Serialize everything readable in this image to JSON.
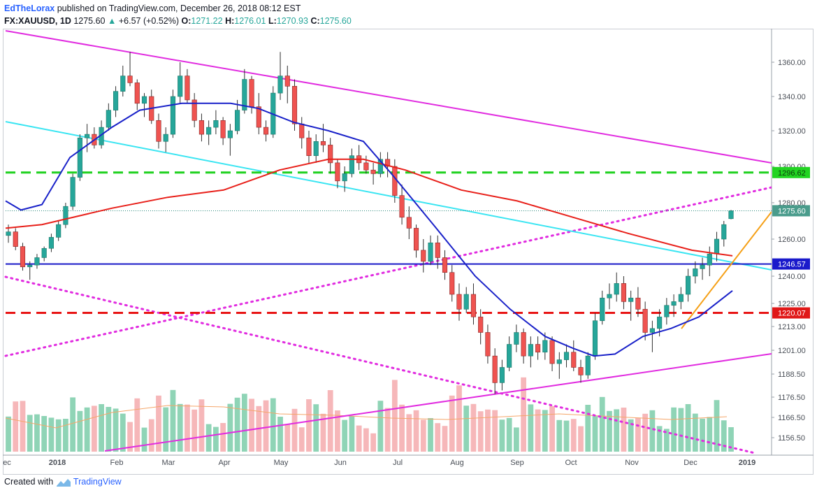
{
  "header": {
    "author": "EdTheLorax",
    "published": "published on TradingView.com, December 26, 2018 08:12 EST",
    "symbol": "FX:XAUUSD, 1D",
    "last": "1275.60",
    "change": "+6.57 (+0.52%)",
    "o_label": "O:",
    "o_value": "1271.22",
    "h_label": "H:",
    "h_value": "1276.01",
    "l_label": "L:",
    "l_value": "1270.93",
    "c_label": "C:",
    "c_value": "1275.60"
  },
  "footer": {
    "created": "Created with",
    "brand": "TradingView"
  },
  "colors": {
    "up": "#26a69a",
    "down": "#ef5350",
    "ma_fast": "#1a22c9",
    "ma_slow": "#e8201a",
    "magenta": "#e12ce0",
    "cyan": "#3ae5f2",
    "green_dash": "#1fd11f",
    "red_dash": "#e81515",
    "orange": "#f5a017",
    "blue_line": "#1818c8",
    "vol_up": "#8fd4b6",
    "vol_down": "#f6b7b9"
  },
  "chart_data": {
    "type": "candlestick",
    "symbol": "FX:XAUUSD",
    "interval": "1D",
    "x_axis_labels": [
      "ec",
      "2018",
      "Feb",
      "Mar",
      "Apr",
      "May",
      "Jun",
      "Jul",
      "Aug",
      "Sep",
      "Oct",
      "Nov",
      "Dec",
      "2019"
    ],
    "y_axis_ticks": [
      "1360.00",
      "1340.00",
      "1320.00",
      "1300.00",
      "1280.00",
      "1260.00",
      "1240.00",
      "1225.00",
      "1213.00",
      "1201.00",
      "1188.50",
      "1176.50",
      "1166.50",
      "1156.50"
    ],
    "ylim": [
      1147,
      1372
    ],
    "price_labels": [
      {
        "value": 1296.62,
        "text": "1296.62",
        "color": "green"
      },
      {
        "value": 1275.6,
        "text": "1275.60",
        "color": "teal"
      },
      {
        "value": 1246.57,
        "text": "1246.57",
        "color": "blue"
      },
      {
        "value": 1220.07,
        "text": "1220.07",
        "color": "red"
      }
    ],
    "moving_average_fast_points": [
      [
        "late Dec",
        1281
      ],
      [
        "early Jan",
        1276
      ],
      [
        "Jan",
        1279
      ],
      [
        "late Jan",
        1305
      ],
      [
        "Feb",
        1322
      ],
      [
        "mid Feb",
        1332
      ],
      [
        "Mar",
        1336
      ],
      [
        "Apr",
        1336
      ],
      [
        "mid Apr",
        1333
      ],
      [
        "May",
        1325
      ],
      [
        "mid May",
        1320
      ],
      [
        "Jun",
        1314
      ],
      [
        "mid Jun",
        1296
      ],
      [
        "Jul",
        1268
      ],
      [
        "late Jul",
        1240
      ],
      [
        "Aug",
        1222
      ],
      [
        "late Aug",
        1208
      ],
      [
        "Sep",
        1202
      ],
      [
        "Oct",
        1198
      ],
      [
        "mid Oct",
        1199
      ],
      [
        "Nov",
        1208
      ],
      [
        "mid Nov",
        1212
      ],
      [
        "Dec",
        1218
      ],
      [
        "late Dec",
        1232
      ]
    ],
    "moving_average_slow_points": [
      [
        "late Dec",
        1266
      ],
      [
        "Jan",
        1268
      ],
      [
        "Feb",
        1277
      ],
      [
        "Mar",
        1283
      ],
      [
        "Apr",
        1287
      ],
      [
        "May",
        1298
      ],
      [
        "Jun",
        1304
      ],
      [
        "mid Jun",
        1304
      ],
      [
        "Jul",
        1298
      ],
      [
        "Aug",
        1287
      ],
      [
        "Sep",
        1281
      ],
      [
        "Oct",
        1272
      ],
      [
        "Nov",
        1263
      ],
      [
        "Dec",
        1254
      ],
      [
        "late Dec",
        1251
      ]
    ],
    "candles": [
      [
        1262,
        1268,
        1258,
        1264
      ],
      [
        1264,
        1266,
        1254,
        1256
      ],
      [
        1256,
        1258,
        1243,
        1245
      ],
      [
        1245,
        1248,
        1238,
        1246
      ],
      [
        1246,
        1252,
        1244,
        1250
      ],
      [
        1250,
        1256,
        1248,
        1255
      ],
      [
        1255,
        1263,
        1253,
        1261
      ],
      [
        1261,
        1270,
        1259,
        1268
      ],
      [
        1268,
        1280,
        1266,
        1278
      ],
      [
        1278,
        1296,
        1276,
        1294
      ],
      [
        1294,
        1318,
        1292,
        1316
      ],
      [
        1316,
        1324,
        1308,
        1318
      ],
      [
        1318,
        1322,
        1310,
        1312
      ],
      [
        1312,
        1326,
        1310,
        1322
      ],
      [
        1322,
        1336,
        1320,
        1332
      ],
      [
        1332,
        1346,
        1328,
        1343
      ],
      [
        1343,
        1358,
        1340,
        1352
      ],
      [
        1352,
        1366,
        1346,
        1348
      ],
      [
        1348,
        1350,
        1332,
        1336
      ],
      [
        1336,
        1342,
        1328,
        1340
      ],
      [
        1340,
        1344,
        1324,
        1326
      ],
      [
        1326,
        1330,
        1310,
        1314
      ],
      [
        1314,
        1322,
        1308,
        1318
      ],
      [
        1318,
        1344,
        1316,
        1340
      ],
      [
        1340,
        1360,
        1336,
        1352
      ],
      [
        1352,
        1356,
        1336,
        1338
      ],
      [
        1338,
        1342,
        1322,
        1326
      ],
      [
        1326,
        1330,
        1314,
        1318
      ],
      [
        1318,
        1326,
        1312,
        1322
      ],
      [
        1322,
        1332,
        1318,
        1326
      ],
      [
        1326,
        1328,
        1312,
        1316
      ],
      [
        1316,
        1324,
        1306,
        1320
      ],
      [
        1320,
        1338,
        1318,
        1332
      ],
      [
        1332,
        1356,
        1330,
        1350
      ],
      [
        1350,
        1352,
        1330,
        1334
      ],
      [
        1334,
        1342,
        1318,
        1322
      ],
      [
        1322,
        1326,
        1314,
        1318
      ],
      [
        1318,
        1346,
        1316,
        1342
      ],
      [
        1342,
        1366,
        1338,
        1352
      ],
      [
        1352,
        1358,
        1336,
        1346
      ],
      [
        1346,
        1350,
        1320,
        1324
      ],
      [
        1324,
        1328,
        1310,
        1316
      ],
      [
        1316,
        1320,
        1302,
        1306
      ],
      [
        1306,
        1318,
        1302,
        1314
      ],
      [
        1314,
        1324,
        1308,
        1312
      ],
      [
        1312,
        1316,
        1296,
        1302
      ],
      [
        1302,
        1304,
        1288,
        1292
      ],
      [
        1292,
        1300,
        1286,
        1296
      ],
      [
        1296,
        1310,
        1294,
        1306
      ],
      [
        1306,
        1312,
        1298,
        1302
      ],
      [
        1302,
        1306,
        1296,
        1298
      ],
      [
        1298,
        1302,
        1290,
        1296
      ],
      [
        1296,
        1308,
        1294,
        1304
      ],
      [
        1304,
        1308,
        1294,
        1300
      ],
      [
        1300,
        1304,
        1280,
        1284
      ],
      [
        1284,
        1290,
        1268,
        1272
      ],
      [
        1272,
        1278,
        1260,
        1266
      ],
      [
        1266,
        1268,
        1250,
        1254
      ],
      [
        1254,
        1260,
        1242,
        1248
      ],
      [
        1248,
        1262,
        1246,
        1258
      ],
      [
        1258,
        1262,
        1244,
        1250
      ],
      [
        1250,
        1254,
        1238,
        1242
      ],
      [
        1242,
        1246,
        1226,
        1230
      ],
      [
        1230,
        1236,
        1216,
        1222
      ],
      [
        1222,
        1234,
        1220,
        1230
      ],
      [
        1230,
        1236,
        1214,
        1218
      ],
      [
        1218,
        1222,
        1204,
        1210
      ],
      [
        1210,
        1214,
        1194,
        1198
      ],
      [
        1198,
        1202,
        1178,
        1184
      ],
      [
        1184,
        1196,
        1180,
        1192
      ],
      [
        1192,
        1208,
        1190,
        1204
      ],
      [
        1204,
        1214,
        1200,
        1210
      ],
      [
        1210,
        1212,
        1194,
        1198
      ],
      [
        1198,
        1208,
        1192,
        1204
      ],
      [
        1204,
        1208,
        1196,
        1200
      ],
      [
        1200,
        1210,
        1196,
        1206
      ],
      [
        1206,
        1208,
        1190,
        1194
      ],
      [
        1194,
        1200,
        1186,
        1196
      ],
      [
        1196,
        1204,
        1192,
        1200
      ],
      [
        1200,
        1206,
        1190,
        1192
      ],
      [
        1192,
        1196,
        1184,
        1188
      ],
      [
        1188,
        1200,
        1186,
        1198
      ],
      [
        1198,
        1220,
        1196,
        1216
      ],
      [
        1216,
        1232,
        1214,
        1228
      ],
      [
        1228,
        1236,
        1222,
        1230
      ],
      [
        1230,
        1242,
        1226,
        1236
      ],
      [
        1236,
        1240,
        1222,
        1226
      ],
      [
        1226,
        1232,
        1216,
        1228
      ],
      [
        1228,
        1234,
        1218,
        1222
      ],
      [
        1222,
        1226,
        1206,
        1210
      ],
      [
        1210,
        1216,
        1200,
        1212
      ],
      [
        1212,
        1222,
        1208,
        1218
      ],
      [
        1218,
        1228,
        1214,
        1224
      ],
      [
        1224,
        1230,
        1218,
        1226
      ],
      [
        1226,
        1234,
        1222,
        1230
      ],
      [
        1230,
        1244,
        1226,
        1240
      ],
      [
        1240,
        1248,
        1236,
        1244
      ],
      [
        1244,
        1250,
        1238,
        1246
      ],
      [
        1246,
        1256,
        1240,
        1252
      ],
      [
        1252,
        1264,
        1248,
        1260
      ],
      [
        1260,
        1270,
        1256,
        1268
      ],
      [
        1271.22,
        1276.01,
        1270.93,
        1275.6
      ]
    ]
  }
}
